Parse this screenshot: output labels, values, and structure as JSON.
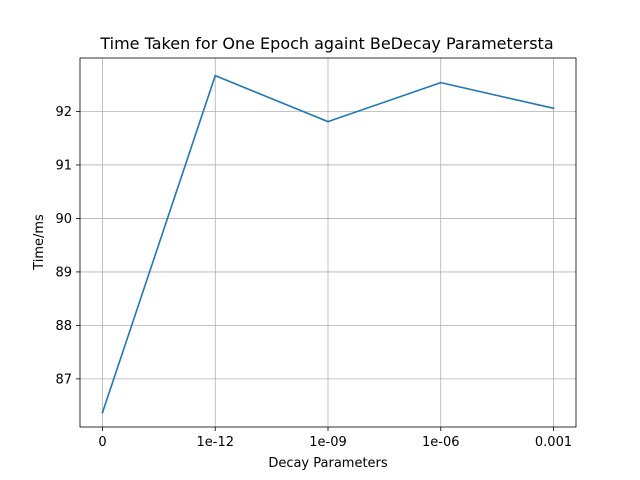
{
  "chart_data": {
    "type": "line",
    "title": "Time Taken for One Epoch againt BeDecay Parametersta",
    "xlabel": "Decay Parameters",
    "ylabel": "Time/ms",
    "categories": [
      "0",
      "1e-12",
      "1e-09",
      "1e-06",
      "0.001"
    ],
    "y_ticks": [
      "87",
      "88",
      "89",
      "90",
      "91",
      "92"
    ],
    "ylim": [
      86.1,
      93.0
    ],
    "grid": true,
    "series": [
      {
        "values": [
          86.37,
          92.67,
          91.81,
          92.54,
          92.06
        ],
        "color": "#1f77b4"
      }
    ]
  }
}
